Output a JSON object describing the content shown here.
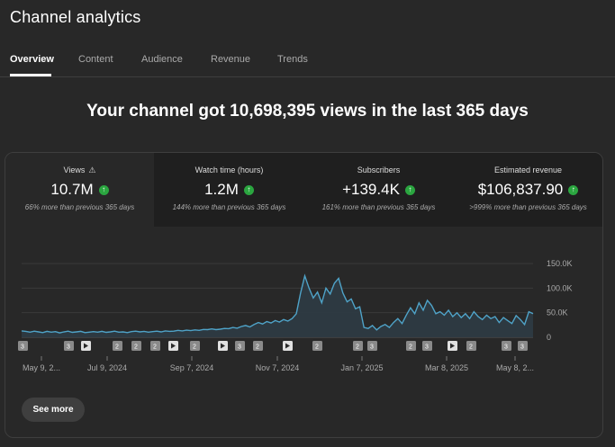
{
  "page": {
    "title": "Channel analytics"
  },
  "tabs": [
    {
      "label": "Overview",
      "active": true
    },
    {
      "label": "Content",
      "active": false
    },
    {
      "label": "Audience",
      "active": false
    },
    {
      "label": "Revenue",
      "active": false
    },
    {
      "label": "Trends",
      "active": false
    }
  ],
  "headline": "Your channel got 10,698,395 views in the last 365 days",
  "metrics": [
    {
      "label": "Views",
      "value": "10.7M",
      "sub": "66% more than previous 365 days",
      "icon": "warning-icon"
    },
    {
      "label": "Watch time (hours)",
      "value": "1.2M",
      "sub": "144% more than previous 365 days"
    },
    {
      "label": "Subscribers",
      "value": "+139.4K",
      "sub": "161% more than previous 365 days"
    },
    {
      "label": "Estimated revenue",
      "value": "$106,837.90",
      "sub": ">999% more than previous 365 days"
    }
  ],
  "chart_data": {
    "type": "area",
    "series": [
      {
        "values": [
          13000,
          12000,
          10500,
          12500,
          11000,
          9500,
          12000,
          10500,
          11500,
          9000,
          11000,
          12500,
          10000,
          11000,
          12000,
          9500,
          10500,
          11500,
          10500,
          12000,
          10000,
          11000,
          12500,
          10500,
          11000,
          9500,
          11500,
          12500,
          11000,
          12000,
          10500,
          11500,
          12500,
          11000,
          13000,
          12000,
          12500,
          14000,
          13000,
          14500,
          13500,
          15000,
          14000,
          16000,
          15500,
          17000,
          15500,
          16500,
          18000,
          17500,
          20000,
          18500,
          22000,
          24000,
          21000,
          26000,
          30000,
          27000,
          32000,
          29000,
          34000,
          31000,
          36000,
          33000,
          38000,
          48000,
          90000,
          125000,
          100000,
          80000,
          92000,
          70000,
          100000,
          88000,
          110000,
          120000,
          90000,
          72000,
          78000,
          58000,
          62000,
          20000,
          18000,
          24000,
          15000,
          22000,
          26000,
          20000,
          30000,
          38000,
          28000,
          45000,
          60000,
          48000,
          70000,
          55000,
          75000,
          65000,
          48000,
          52000,
          45000,
          55000,
          42000,
          50000,
          40000,
          48000,
          38000,
          52000,
          42000,
          36000,
          45000,
          38000,
          42000,
          30000,
          40000,
          34000,
          28000,
          44000,
          36000,
          26000,
          52000,
          48000
        ]
      }
    ],
    "x_tick_labels": [
      "May 9, 2...",
      "Jul 9, 2024",
      "Sep 7, 2024",
      "Nov 7, 2024",
      "Jan 7, 2025",
      "Mar 8, 2025",
      "May 8, 2..."
    ],
    "y_tick_labels": [
      "150.0K",
      "100.0K",
      "50.0K",
      "0"
    ],
    "ylim": [
      0,
      150000
    ],
    "grid": true,
    "markers": [
      "3",
      "3",
      "play",
      "2",
      "2",
      "2",
      "play",
      "2",
      "play",
      "3",
      "2",
      "play",
      "2",
      "2",
      "3",
      "2",
      "3",
      "play",
      "2",
      "3",
      "3"
    ]
  },
  "colors": {
    "background": "#282828",
    "line": "#4fa3c8",
    "fill": "#2d3a42",
    "positive": "#2ba640"
  },
  "see_more_label": "See more"
}
